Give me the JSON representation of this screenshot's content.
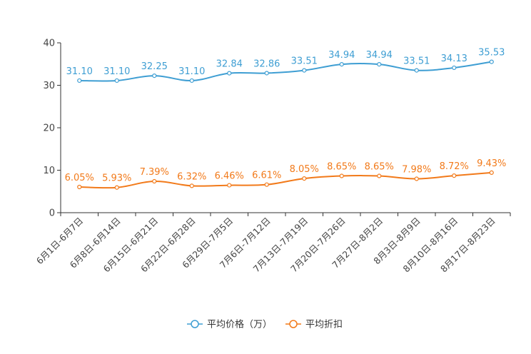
{
  "chart_data": {
    "type": "line",
    "title": "",
    "xlabel": "",
    "ylabel": "",
    "ylim": [
      0,
      40
    ],
    "yticks": [
      0,
      10,
      20,
      30,
      40
    ],
    "grid": false,
    "legend_position": "bottom-center",
    "categories": [
      "6月1日-6月7日",
      "6月8日-6月14日",
      "6月15日-6月21日",
      "6月22日-6月28日",
      "6月29日-7月5日",
      "7月6日-7月12日",
      "7月13日-7月19日",
      "7月20日-7月26日",
      "7月27日-8月2日",
      "8月3日-8月9日",
      "8月10日-8月16日",
      "8月17日-8月23日"
    ],
    "series": [
      {
        "name": "平均价格（万）",
        "color": "#3e9ed3",
        "values": [
          31.1,
          31.1,
          32.25,
          31.1,
          32.84,
          32.86,
          33.51,
          34.94,
          34.94,
          33.51,
          34.13,
          35.53
        ],
        "labels": [
          "31.10",
          "31.10",
          "32.25",
          "31.10",
          "32.84",
          "32.86",
          "33.51",
          "34.94",
          "34.94",
          "33.51",
          "34.13",
          "35.53"
        ]
      },
      {
        "name": "平均折扣",
        "color": "#f27a1a",
        "values": [
          6.05,
          5.93,
          7.39,
          6.32,
          6.46,
          6.61,
          8.05,
          8.65,
          8.65,
          7.98,
          8.72,
          9.43
        ],
        "labels": [
          "6.05%",
          "5.93%",
          "7.39%",
          "6.32%",
          "6.46%",
          "6.61%",
          "8.05%",
          "8.65%",
          "8.65%",
          "7.98%",
          "8.72%",
          "9.43%"
        ]
      }
    ]
  }
}
